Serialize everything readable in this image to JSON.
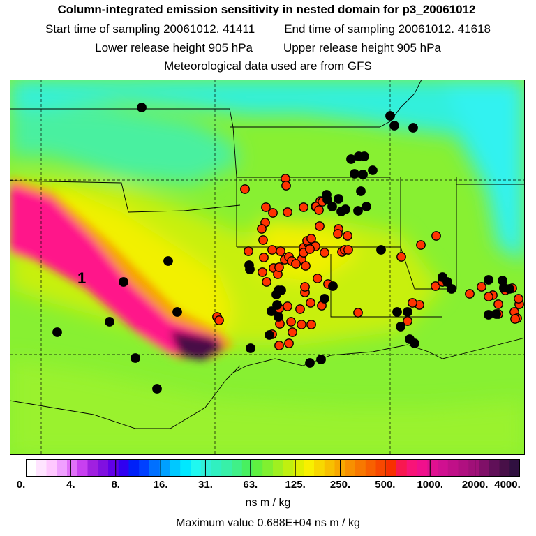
{
  "header": {
    "title": "Column-integrated emission sensitivity in nested domain for p3_20061012",
    "start_label": "Start time of sampling 20061012. 41411",
    "end_label": "End time of sampling 20061012. 41618",
    "lower_label": "Lower release height  905 hPa",
    "upper_label": "Upper release height  905 hPa",
    "met_label": "Meteorological data used are from GFS"
  },
  "map": {
    "plume_label": "1",
    "colors": {
      "background_green": "#7cf032",
      "cyan": "#33f2dd",
      "yellow": "#f4f200",
      "orange": "#f7a000",
      "magenta": "#ff148a",
      "dark_purple": "#4a1046",
      "marker_red": "#ff3300",
      "marker_black": "#000000"
    }
  },
  "colorbar": {
    "tick_labels": [
      "0.",
      "4.",
      "8.",
      "16.",
      "31.",
      "63.",
      "125.",
      "250.",
      "500.",
      "1000.",
      "2000.",
      "4000."
    ],
    "colors": [
      "#ffffff",
      "#ffe4ff",
      "#ffc8ff",
      "#f0a0ff",
      "#e070f8",
      "#c840f0",
      "#a020e0",
      "#8010e0",
      "#6000e8",
      "#3000f0",
      "#0020f8",
      "#0040ff",
      "#0070ff",
      "#00a0ff",
      "#00c8ff",
      "#00e8ff",
      "#20f8f0",
      "#30f0d8",
      "#30f0c0",
      "#38f0a8",
      "#40f088",
      "#48f060",
      "#60f040",
      "#80f030",
      "#a0f020",
      "#c0f010",
      "#e0f000",
      "#f8f000",
      "#f8d800",
      "#f8c000",
      "#f8a800",
      "#f89000",
      "#f87800",
      "#f86000",
      "#f84800",
      "#f83000",
      "#f81850",
      "#f81478",
      "#f0108c",
      "#e01090",
      "#d01090",
      "#c01088",
      "#b01080",
      "#a01078",
      "#801068",
      "#601058",
      "#481048",
      "#301040"
    ],
    "units": "ns m / kg"
  },
  "footer": {
    "max_value": "Maximum value  0.688E+04 ns m / kg"
  }
}
